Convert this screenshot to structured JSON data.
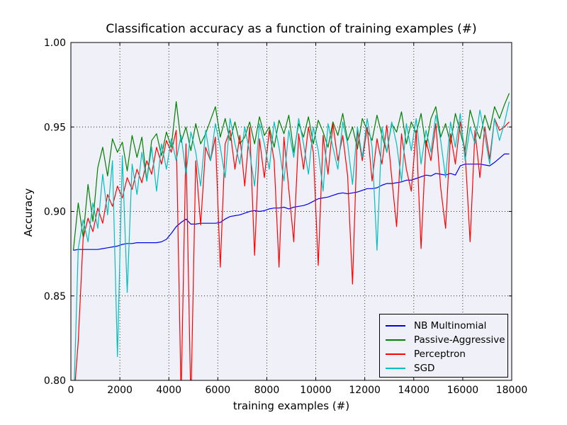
{
  "colors": {
    "figure_bg": "#ffffff",
    "plot_bg": "#f0f0f8",
    "grid": "#000000",
    "axis_border": "#000000",
    "text": "#000000",
    "legend_bg": "#f0f0f8",
    "legend_border": "#000000"
  },
  "chart_data": {
    "type": "line",
    "title": "Classification accuracy as a function of training examples (#)",
    "xlabel": "training examples (#)",
    "ylabel": "Accuracy",
    "xlim": [
      0,
      18000
    ],
    "ylim": [
      0.8,
      1.0
    ],
    "grid": true,
    "legend_position": "lower right",
    "xticks": [
      0,
      2000,
      4000,
      6000,
      8000,
      10000,
      12000,
      14000,
      16000,
      18000
    ],
    "xtick_labels": [
      "0",
      "2000",
      "4000",
      "6000",
      "8000",
      "10000",
      "12000",
      "14000",
      "16000",
      "18000"
    ],
    "yticks": [
      0.8,
      0.85,
      0.9,
      0.95,
      1.0
    ],
    "ytick_labels": [
      "0.80",
      "0.85",
      "0.90",
      "0.95",
      "1.00"
    ],
    "x": [
      100,
      300,
      500,
      700,
      900,
      1100,
      1300,
      1500,
      1700,
      1900,
      2100,
      2300,
      2500,
      2700,
      2900,
      3100,
      3300,
      3500,
      3700,
      3900,
      4100,
      4300,
      4500,
      4700,
      4900,
      5100,
      5300,
      5500,
      5700,
      5900,
      6100,
      6300,
      6500,
      6700,
      6900,
      7100,
      7300,
      7500,
      7700,
      7900,
      8100,
      8300,
      8500,
      8700,
      8900,
      9100,
      9300,
      9500,
      9700,
      9900,
      10100,
      10300,
      10500,
      10700,
      10900,
      11100,
      11300,
      11500,
      11700,
      11900,
      12100,
      12300,
      12500,
      12700,
      12900,
      13100,
      13300,
      13500,
      13700,
      13900,
      14100,
      14300,
      14500,
      14700,
      14900,
      15100,
      15300,
      15500,
      15700,
      15900,
      16100,
      16300,
      16500,
      16700,
      16900,
      17100,
      17300,
      17500,
      17700,
      17900
    ],
    "series": [
      {
        "name": "NB Multinomial",
        "color": "#0000ee",
        "values": [
          0.877,
          0.8775,
          0.8775,
          0.8775,
          0.8775,
          0.8775,
          0.878,
          0.8785,
          0.879,
          0.8795,
          0.8805,
          0.881,
          0.881,
          0.8815,
          0.8815,
          0.8815,
          0.8815,
          0.8815,
          0.882,
          0.8835,
          0.887,
          0.891,
          0.8935,
          0.8955,
          0.8925,
          0.8925,
          0.893,
          0.893,
          0.893,
          0.893,
          0.8935,
          0.8955,
          0.897,
          0.8975,
          0.898,
          0.899,
          0.9,
          0.9005,
          0.9,
          0.9005,
          0.9015,
          0.902,
          0.902,
          0.9025,
          0.9015,
          0.9025,
          0.903,
          0.9035,
          0.9045,
          0.906,
          0.9075,
          0.908,
          0.9085,
          0.9095,
          0.9105,
          0.911,
          0.9105,
          0.911,
          0.9115,
          0.9125,
          0.9135,
          0.9135,
          0.914,
          0.9155,
          0.9165,
          0.9165,
          0.917,
          0.9175,
          0.9185,
          0.9185,
          0.9195,
          0.9205,
          0.9215,
          0.921,
          0.9225,
          0.922,
          0.9215,
          0.9225,
          0.9215,
          0.927,
          0.928,
          0.928,
          0.928,
          0.928,
          0.9275,
          0.927,
          0.929,
          0.9315,
          0.934,
          0.934
        ]
      },
      {
        "name": "Passive-Aggressive",
        "color": "#008000",
        "values": [
          0.877,
          0.905,
          0.885,
          0.916,
          0.894,
          0.926,
          0.938,
          0.921,
          0.943,
          0.935,
          0.941,
          0.924,
          0.945,
          0.932,
          0.944,
          0.918,
          0.942,
          0.946,
          0.933,
          0.947,
          0.938,
          0.965,
          0.941,
          0.95,
          0.936,
          0.952,
          0.94,
          0.946,
          0.954,
          0.962,
          0.944,
          0.955,
          0.942,
          0.953,
          0.94,
          0.944,
          0.953,
          0.94,
          0.956,
          0.945,
          0.95,
          0.938,
          0.954,
          0.946,
          0.957,
          0.935,
          0.952,
          0.944,
          0.956,
          0.94,
          0.954,
          0.947,
          0.938,
          0.953,
          0.945,
          0.958,
          0.942,
          0.95,
          0.937,
          0.955,
          0.948,
          0.942,
          0.957,
          0.945,
          0.935,
          0.952,
          0.947,
          0.959,
          0.94,
          0.953,
          0.946,
          0.958,
          0.938,
          0.955,
          0.962,
          0.944,
          0.952,
          0.94,
          0.958,
          0.947,
          0.936,
          0.96,
          0.95,
          0.943,
          0.957,
          0.948,
          0.962,
          0.955,
          0.963,
          0.97
        ]
      },
      {
        "name": "Perceptron",
        "color": "#ff0000",
        "values": [
          0.785,
          0.823,
          0.884,
          0.896,
          0.888,
          0.902,
          0.893,
          0.91,
          0.903,
          0.915,
          0.908,
          0.92,
          0.913,
          0.925,
          0.917,
          0.93,
          0.922,
          0.938,
          0.928,
          0.942,
          0.935,
          0.948,
          0.79,
          0.94,
          0.785,
          0.93,
          0.892,
          0.938,
          0.93,
          0.944,
          0.867,
          0.94,
          0.948,
          0.925,
          0.945,
          0.915,
          0.95,
          0.874,
          0.943,
          0.92,
          0.948,
          0.93,
          0.867,
          0.944,
          0.913,
          0.882,
          0.946,
          0.925,
          0.95,
          0.935,
          0.868,
          0.945,
          0.922,
          0.952,
          0.93,
          0.945,
          0.921,
          0.857,
          0.948,
          0.93,
          0.95,
          0.918,
          0.943,
          0.928,
          0.951,
          0.92,
          0.891,
          0.946,
          0.925,
          0.912,
          0.948,
          0.878,
          0.942,
          0.93,
          0.952,
          0.914,
          0.89,
          0.946,
          0.928,
          0.953,
          0.935,
          0.882,
          0.948,
          0.92,
          0.95,
          0.931,
          0.955,
          0.948,
          0.95,
          0.953
        ]
      },
      {
        "name": "SGD",
        "color": "#00bfbf",
        "values": [
          0.78,
          0.878,
          0.895,
          0.882,
          0.905,
          0.89,
          0.922,
          0.898,
          0.93,
          0.814,
          0.933,
          0.852,
          0.928,
          0.91,
          0.935,
          0.918,
          0.938,
          0.912,
          0.94,
          0.925,
          0.943,
          0.93,
          0.945,
          0.922,
          0.947,
          0.935,
          0.915,
          0.948,
          0.93,
          0.952,
          0.938,
          0.92,
          0.955,
          0.94,
          0.928,
          0.95,
          0.935,
          0.915,
          0.952,
          0.94,
          0.925,
          0.953,
          0.938,
          0.918,
          0.948,
          0.932,
          0.955,
          0.94,
          0.922,
          0.95,
          0.936,
          0.912,
          0.952,
          0.938,
          0.925,
          0.953,
          0.94,
          0.916,
          0.95,
          0.932,
          0.955,
          0.938,
          0.877,
          0.95,
          0.935,
          0.953,
          0.94,
          0.918,
          0.952,
          0.936,
          0.955,
          0.928,
          0.948,
          0.935,
          0.957,
          0.942,
          0.92,
          0.953,
          0.938,
          0.958,
          0.93,
          0.95,
          0.94,
          0.96,
          0.945,
          0.928,
          0.955,
          0.942,
          0.952,
          0.965
        ]
      }
    ]
  }
}
